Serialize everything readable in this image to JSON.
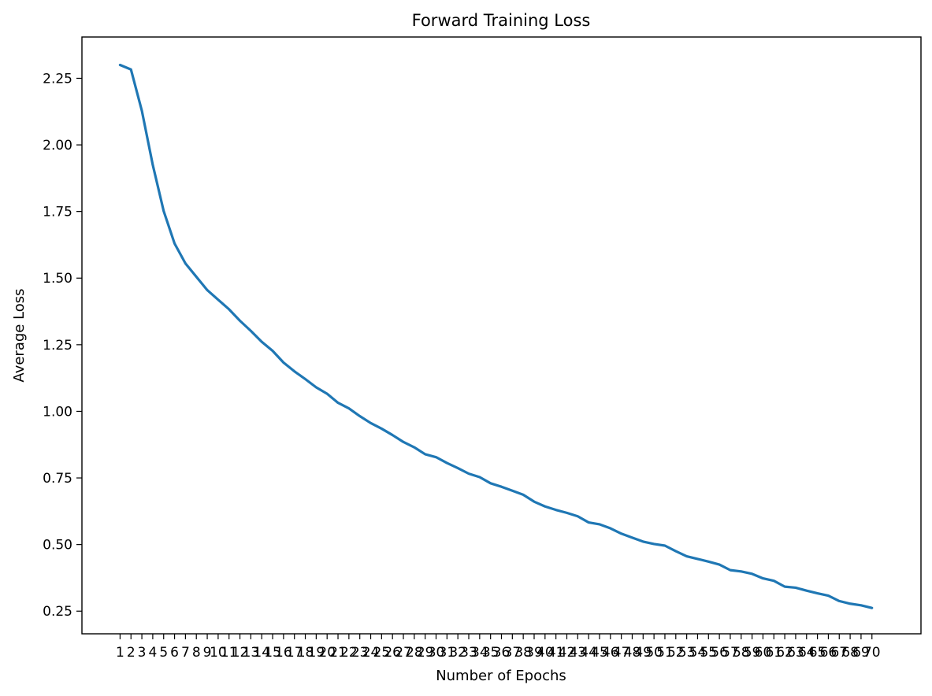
{
  "chart_data": {
    "type": "line",
    "title": "Forward Training Loss",
    "xlabel": "Number of Epochs",
    "ylabel": "Average Loss",
    "x": [
      1,
      2,
      3,
      4,
      5,
      6,
      7,
      8,
      9,
      10,
      11,
      12,
      13,
      14,
      15,
      16,
      17,
      18,
      19,
      20,
      21,
      22,
      23,
      24,
      25,
      26,
      27,
      28,
      29,
      30,
      31,
      32,
      33,
      34,
      35,
      36,
      37,
      38,
      39,
      40,
      41,
      42,
      43,
      44,
      45,
      46,
      47,
      48,
      49,
      50,
      51,
      52,
      53,
      54,
      55,
      56,
      57,
      58,
      59,
      60,
      61,
      62,
      63,
      64,
      65,
      66,
      67,
      68,
      69,
      70
    ],
    "xticks": [
      "1",
      "2",
      "3",
      "4",
      "5",
      "6",
      "7",
      "8",
      "9",
      "10",
      "11",
      "12",
      "13",
      "14",
      "15",
      "16",
      "17",
      "18",
      "19",
      "20",
      "21",
      "22",
      "23",
      "24",
      "25",
      "26",
      "27",
      "28",
      "29",
      "30",
      "31",
      "32",
      "33",
      "34",
      "35",
      "36",
      "37",
      "38",
      "39",
      "40",
      "41",
      "42",
      "43",
      "44",
      "45",
      "46",
      "47",
      "48",
      "49",
      "50",
      "51",
      "52",
      "53",
      "54",
      "55",
      "56",
      "57",
      "58",
      "59",
      "60",
      "61",
      "62",
      "63",
      "64",
      "65",
      "66",
      "67",
      "68",
      "69",
      "70"
    ],
    "yticks": [
      "0.25",
      "0.50",
      "0.75",
      "1.00",
      "1.25",
      "1.50",
      "1.75",
      "2.00",
      "2.25"
    ],
    "ylim": [
      0.165,
      2.405
    ],
    "xlim": [
      -2.5,
      74.5
    ],
    "grid": false,
    "series": [
      {
        "values": [
          2.3,
          2.283,
          2.128,
          1.925,
          1.752,
          1.63,
          1.555,
          1.505,
          1.455,
          1.419,
          1.383,
          1.34,
          1.302,
          1.261,
          1.227,
          1.183,
          1.15,
          1.121,
          1.09,
          1.066,
          1.032,
          1.011,
          0.982,
          0.956,
          0.935,
          0.911,
          0.885,
          0.865,
          0.839,
          0.828,
          0.806,
          0.787,
          0.766,
          0.753,
          0.73,
          0.717,
          0.702,
          0.687,
          0.661,
          0.643,
          0.63,
          0.619,
          0.606,
          0.583,
          0.576,
          0.561,
          0.541,
          0.526,
          0.511,
          0.502,
          0.496,
          0.475,
          0.456,
          0.446,
          0.436,
          0.425,
          0.404,
          0.399,
          0.39,
          0.373,
          0.364,
          0.342,
          0.338,
          0.327,
          0.317,
          0.308,
          0.288,
          0.278,
          0.272,
          0.262
        ],
        "color": "#1f77b4"
      }
    ]
  }
}
